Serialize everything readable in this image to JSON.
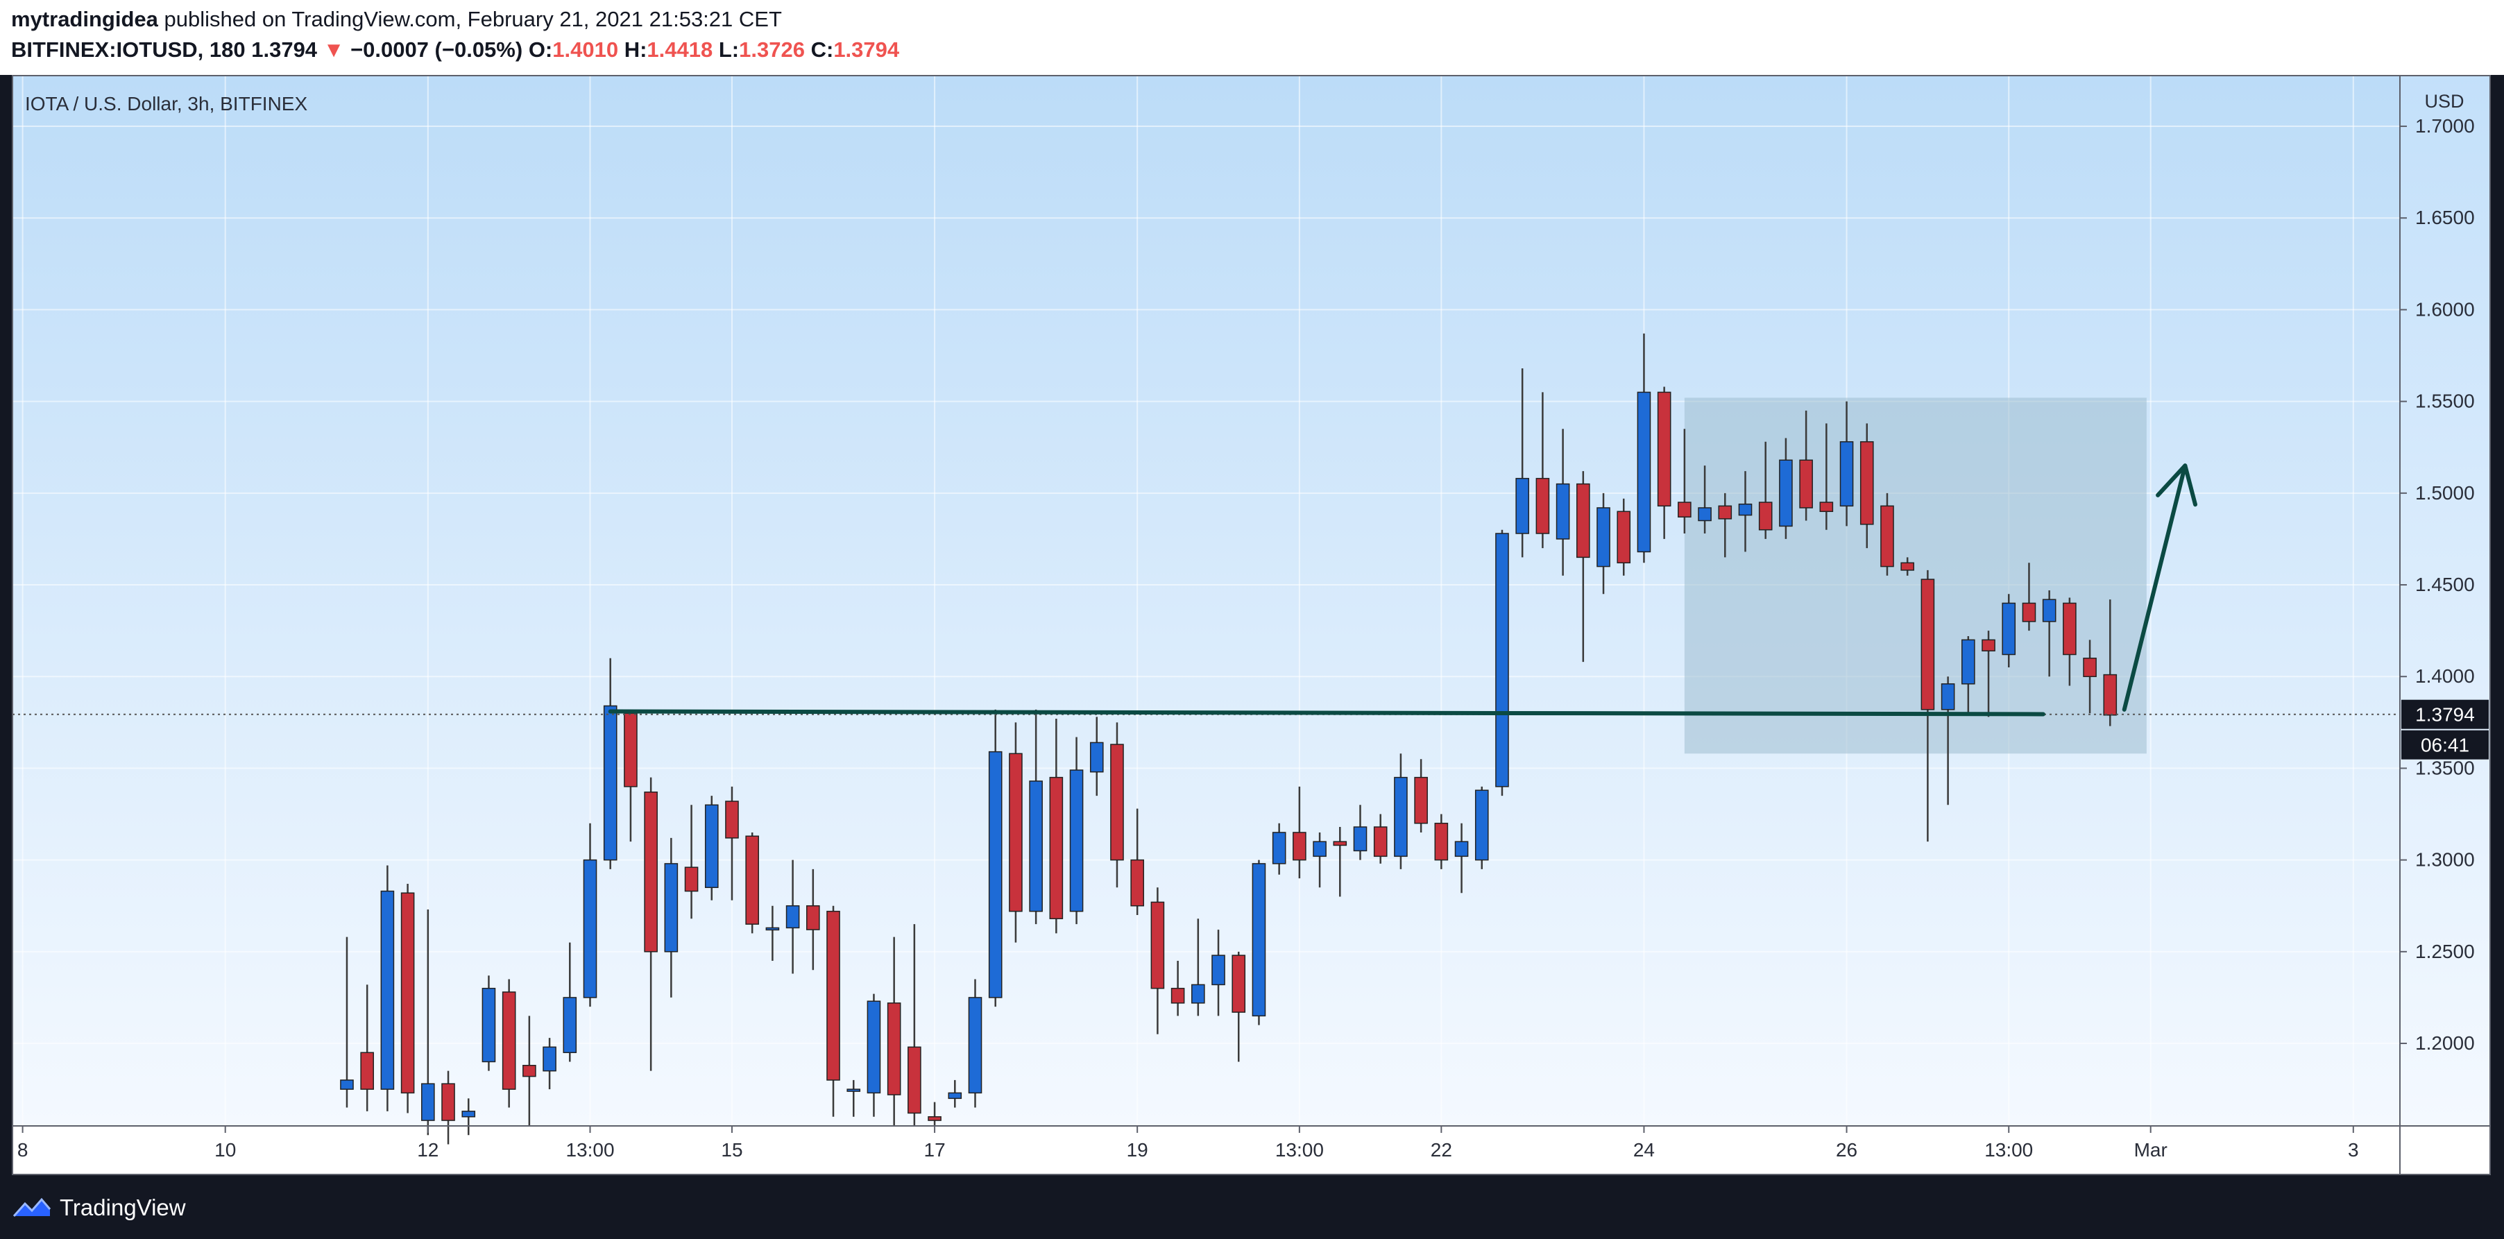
{
  "header": {
    "author": "mytradingidea",
    "published_text": "published on TradingView.com, February 21, 2021 21:53:21 CET",
    "symbol": "BITFINEX:IOTUSD, 180",
    "last_price": "1.3794",
    "down_arrow": "▼",
    "change": "−0.0007 (−0.05%)",
    "o_label": "O:",
    "o_value": "1.4010",
    "h_label": "H:",
    "h_value": "1.4418",
    "l_label": "L:",
    "l_value": "1.3726",
    "c_label": "C:",
    "c_value": "1.3794"
  },
  "footer": {
    "brand": "TradingView",
    "icon": "tradingview-logo-icon"
  },
  "colors": {
    "up": "#1e6bd6",
    "down": "#c8323c",
    "wick": "#3a3a3a",
    "drawing": "#0b4a43",
    "zone": "#9ebdcf",
    "price_tag": "#131722"
  },
  "chart_data": {
    "type": "candlestick",
    "title": "IOTA / U.S. Dollar, 3h, BITFINEX",
    "currency_label": "USD",
    "ylim": [
      1.155,
      1.728
    ],
    "y_ticks": [
      "1.7000",
      "1.6500",
      "1.6000",
      "1.5500",
      "1.5000",
      "1.4500",
      "1.4000",
      "1.3500",
      "1.3000",
      "1.2500",
      "1.2000"
    ],
    "x_ticks": [
      {
        "label": "8",
        "pos": 0.5
      },
      {
        "label": "10",
        "pos": 10.5
      },
      {
        "label": "12",
        "pos": 20.5
      },
      {
        "label": "13:00",
        "pos": 28.5
      },
      {
        "label": "15",
        "pos": 35.5
      },
      {
        "label": "17",
        "pos": 45.5
      },
      {
        "label": "19",
        "pos": 55.5
      },
      {
        "label": "13:00",
        "pos": 63.5
      },
      {
        "label": "22",
        "pos": 70.5
      },
      {
        "label": "24",
        "pos": 80.5
      },
      {
        "label": "26",
        "pos": 90.5
      },
      {
        "label": "13:00",
        "pos": 98.5
      },
      {
        "label": "Mar",
        "pos": 105.5
      },
      {
        "label": "3",
        "pos": 115.5
      }
    ],
    "x_range": [
      0,
      117.8
    ],
    "candles": [
      [
        16.5,
        1.175,
        1.18,
        1.258,
        1.165
      ],
      [
        17.5,
        1.195,
        1.175,
        1.232,
        1.163
      ],
      [
        18.5,
        1.175,
        1.283,
        1.297,
        1.163
      ],
      [
        19.5,
        1.282,
        1.173,
        1.287,
        1.162
      ],
      [
        20.5,
        1.158,
        1.178,
        1.273,
        1.15
      ],
      [
        21.5,
        1.178,
        1.158,
        1.185,
        1.145
      ],
      [
        22.5,
        1.16,
        1.163,
        1.17,
        1.15
      ],
      [
        23.5,
        1.19,
        1.23,
        1.237,
        1.185
      ],
      [
        24.5,
        1.228,
        1.175,
        1.235,
        1.165
      ],
      [
        25.5,
        1.188,
        1.182,
        1.215,
        1.155
      ],
      [
        26.5,
        1.185,
        1.198,
        1.203,
        1.175
      ],
      [
        27.5,
        1.195,
        1.225,
        1.255,
        1.19
      ],
      [
        28.5,
        1.225,
        1.3,
        1.32,
        1.22
      ],
      [
        29.5,
        1.3,
        1.384,
        1.41,
        1.295
      ],
      [
        30.5,
        1.38,
        1.34,
        1.382,
        1.31
      ],
      [
        31.5,
        1.337,
        1.25,
        1.345,
        1.185
      ],
      [
        32.5,
        1.25,
        1.298,
        1.312,
        1.225
      ],
      [
        33.5,
        1.296,
        1.283,
        1.33,
        1.268
      ],
      [
        34.5,
        1.285,
        1.33,
        1.335,
        1.278
      ],
      [
        35.5,
        1.332,
        1.312,
        1.34,
        1.278
      ],
      [
        36.5,
        1.313,
        1.265,
        1.315,
        1.26
      ],
      [
        37.5,
        1.262,
        1.263,
        1.275,
        1.245
      ],
      [
        38.5,
        1.263,
        1.275,
        1.3,
        1.238
      ],
      [
        39.5,
        1.275,
        1.262,
        1.295,
        1.24
      ],
      [
        40.5,
        1.272,
        1.18,
        1.275,
        1.16
      ],
      [
        41.5,
        1.175,
        1.175,
        1.18,
        1.16
      ],
      [
        42.5,
        1.173,
        1.223,
        1.227,
        1.16
      ],
      [
        43.5,
        1.222,
        1.172,
        1.258,
        1.155
      ],
      [
        44.5,
        1.198,
        1.162,
        1.265,
        1.155
      ],
      [
        45.5,
        1.16,
        1.158,
        1.168,
        1.155
      ],
      [
        46.5,
        1.17,
        1.173,
        1.18,
        1.165
      ],
      [
        47.5,
        1.173,
        1.225,
        1.235,
        1.165
      ],
      [
        48.5,
        1.225,
        1.359,
        1.382,
        1.22
      ],
      [
        49.5,
        1.358,
        1.272,
        1.375,
        1.255
      ],
      [
        50.5,
        1.272,
        1.343,
        1.382,
        1.265
      ],
      [
        51.5,
        1.345,
        1.268,
        1.377,
        1.26
      ],
      [
        52.5,
        1.272,
        1.349,
        1.367,
        1.265
      ],
      [
        53.5,
        1.348,
        1.364,
        1.378,
        1.335
      ],
      [
        54.5,
        1.363,
        1.3,
        1.375,
        1.285
      ],
      [
        55.5,
        1.3,
        1.275,
        1.328,
        1.27
      ],
      [
        56.5,
        1.277,
        1.23,
        1.285,
        1.205
      ],
      [
        57.5,
        1.23,
        1.222,
        1.245,
        1.215
      ],
      [
        58.5,
        1.222,
        1.232,
        1.268,
        1.215
      ],
      [
        59.5,
        1.232,
        1.248,
        1.262,
        1.215
      ],
      [
        60.5,
        1.248,
        1.217,
        1.25,
        1.19
      ],
      [
        61.5,
        1.215,
        1.298,
        1.3,
        1.21
      ],
      [
        62.5,
        1.298,
        1.315,
        1.32,
        1.292
      ],
      [
        63.5,
        1.315,
        1.3,
        1.34,
        1.29
      ],
      [
        64.5,
        1.302,
        1.31,
        1.315,
        1.285
      ],
      [
        65.5,
        1.31,
        1.308,
        1.318,
        1.28
      ],
      [
        66.5,
        1.305,
        1.318,
        1.33,
        1.3
      ],
      [
        67.5,
        1.318,
        1.302,
        1.325,
        1.298
      ],
      [
        68.5,
        1.302,
        1.345,
        1.358,
        1.295
      ],
      [
        69.5,
        1.345,
        1.32,
        1.355,
        1.315
      ],
      [
        70.5,
        1.32,
        1.3,
        1.325,
        1.295
      ],
      [
        71.5,
        1.302,
        1.31,
        1.32,
        1.282
      ],
      [
        72.5,
        1.3,
        1.338,
        1.34,
        1.295
      ],
      [
        73.5,
        1.34,
        1.478,
        1.48,
        1.335
      ],
      [
        74.5,
        1.478,
        1.508,
        1.568,
        1.465
      ],
      [
        75.5,
        1.508,
        1.478,
        1.555,
        1.47
      ],
      [
        76.5,
        1.475,
        1.505,
        1.535,
        1.455
      ],
      [
        77.5,
        1.505,
        1.465,
        1.512,
        1.408
      ],
      [
        78.5,
        1.46,
        1.492,
        1.5,
        1.445
      ],
      [
        79.5,
        1.49,
        1.462,
        1.497,
        1.455
      ],
      [
        80.5,
        1.468,
        1.555,
        1.587,
        1.462
      ],
      [
        81.5,
        1.555,
        1.493,
        1.558,
        1.475
      ],
      [
        82.5,
        1.495,
        1.487,
        1.535,
        1.478
      ],
      [
        83.5,
        1.485,
        1.492,
        1.515,
        1.478
      ],
      [
        84.5,
        1.493,
        1.486,
        1.5,
        1.465
      ],
      [
        85.5,
        1.488,
        1.494,
        1.512,
        1.468
      ],
      [
        86.5,
        1.495,
        1.48,
        1.528,
        1.475
      ],
      [
        87.5,
        1.482,
        1.518,
        1.53,
        1.475
      ],
      [
        88.5,
        1.518,
        1.492,
        1.545,
        1.485
      ],
      [
        89.5,
        1.495,
        1.49,
        1.538,
        1.48
      ],
      [
        90.5,
        1.493,
        1.528,
        1.55,
        1.482
      ],
      [
        91.5,
        1.528,
        1.483,
        1.538,
        1.47
      ],
      [
        92.5,
        1.493,
        1.46,
        1.5,
        1.455
      ],
      [
        93.5,
        1.462,
        1.458,
        1.465,
        1.455
      ],
      [
        94.5,
        1.453,
        1.382,
        1.458,
        1.31
      ],
      [
        95.5,
        1.382,
        1.396,
        1.4,
        1.33
      ],
      [
        96.5,
        1.396,
        1.42,
        1.422,
        1.38
      ],
      [
        97.5,
        1.42,
        1.414,
        1.425,
        1.378
      ],
      [
        98.5,
        1.412,
        1.44,
        1.445,
        1.405
      ],
      [
        99.5,
        1.44,
        1.43,
        1.462,
        1.425
      ],
      [
        100.5,
        1.43,
        1.442,
        1.447,
        1.4
      ],
      [
        101.5,
        1.44,
        1.412,
        1.443,
        1.395
      ],
      [
        102.5,
        1.41,
        1.4,
        1.42,
        1.38
      ],
      [
        103.5,
        1.401,
        1.379,
        1.442,
        1.373
      ]
    ],
    "current_price": 1.3794,
    "price_label": "1.3794",
    "countdown_label": "06:41",
    "annotations": {
      "support_line": {
        "x1": 29.5,
        "x2": 100.2,
        "y": 1.381
      },
      "zone": {
        "x1": 82.5,
        "x2": 105.3,
        "y1": 1.358,
        "y2": 1.552
      },
      "arrow": {
        "x1": 104.2,
        "y1": 1.382,
        "x2": 107.2,
        "y2": 1.515
      }
    }
  }
}
